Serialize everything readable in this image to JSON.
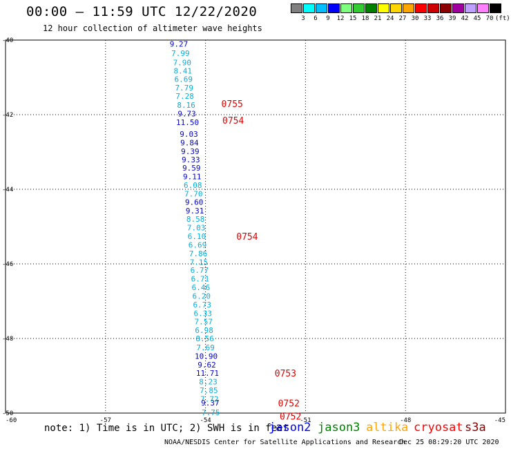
{
  "header": {
    "title": "00:00 – 11:59 UTC 12/22/2020",
    "subtitle": "12 hour collection of altimeter wave heights"
  },
  "colorbar": {
    "colors": [
      "#808080",
      "#00ffff",
      "#00bfff",
      "#0000ff",
      "#7fff7f",
      "#32cd32",
      "#008000",
      "#ffff00",
      "#ffd700",
      "#ffa500",
      "#ff0000",
      "#cc0000",
      "#8b0000",
      "#a000a0",
      "#c0a0ff",
      "#ff80ff",
      "#000000"
    ],
    "labels": [
      "3",
      "6",
      "9",
      "12",
      "15",
      "18",
      "21",
      "24",
      "27",
      "30",
      "33",
      "36",
      "39",
      "42",
      "45",
      "70",
      "(ft)"
    ]
  },
  "chart_data": {
    "type": "scatter",
    "xlim": [
      -60,
      -45
    ],
    "ylim": [
      -50,
      -40
    ],
    "xticks": [
      "-60",
      "-57",
      "-54",
      "-51",
      "-48",
      "-45"
    ],
    "yticks": [
      "-40",
      "-42",
      "-44",
      "-46",
      "-48",
      "-50"
    ],
    "grid": true,
    "points": [
      {
        "lon": -54.8,
        "lat": -40.1,
        "swh": "9.27",
        "color": "#0000cc"
      },
      {
        "lon": -54.75,
        "lat": -40.35,
        "swh": "7.99",
        "color": "#00b0e0"
      },
      {
        "lon": -54.7,
        "lat": -40.6,
        "swh": "7.90",
        "color": "#00b0e0"
      },
      {
        "lon": -54.68,
        "lat": -40.82,
        "swh": "8.41",
        "color": "#00b0e0"
      },
      {
        "lon": -54.66,
        "lat": -41.05,
        "swh": "6.69",
        "color": "#00b0e0"
      },
      {
        "lon": -54.64,
        "lat": -41.28,
        "swh": "7.79",
        "color": "#00b0e0"
      },
      {
        "lon": -54.62,
        "lat": -41.5,
        "swh": "7.28",
        "color": "#00b0e0"
      },
      {
        "lon": -54.58,
        "lat": -41.74,
        "swh": "8.16",
        "color": "#00b0e0"
      },
      {
        "lon": -54.56,
        "lat": -41.97,
        "swh": "9.73",
        "color": "#0000cc"
      },
      {
        "lon": -54.54,
        "lat": -42.2,
        "swh": "11.50",
        "color": "#0000cc"
      },
      {
        "lon": -54.5,
        "lat": -42.52,
        "swh": "9.03",
        "color": "#0000cc"
      },
      {
        "lon": -54.48,
        "lat": -42.75,
        "swh": "9.84",
        "color": "#0000cc"
      },
      {
        "lon": -54.46,
        "lat": -42.98,
        "swh": "9.39",
        "color": "#0000cc"
      },
      {
        "lon": -54.44,
        "lat": -43.2,
        "swh": "9.33",
        "color": "#0000cc"
      },
      {
        "lon": -54.42,
        "lat": -43.43,
        "swh": "9.59",
        "color": "#0000cc"
      },
      {
        "lon": -54.4,
        "lat": -43.66,
        "swh": "9.11",
        "color": "#0000cc"
      },
      {
        "lon": -54.38,
        "lat": -43.89,
        "swh": "6.08",
        "color": "#00b0e0"
      },
      {
        "lon": -54.36,
        "lat": -44.12,
        "swh": "7.70",
        "color": "#00b0e0"
      },
      {
        "lon": -54.34,
        "lat": -44.34,
        "swh": "9.60",
        "color": "#0000cc"
      },
      {
        "lon": -54.32,
        "lat": -44.57,
        "swh": "9.31",
        "color": "#0000cc"
      },
      {
        "lon": -54.3,
        "lat": -44.8,
        "swh": "8.58",
        "color": "#00b0e0"
      },
      {
        "lon": -54.28,
        "lat": -45.03,
        "swh": "7.03",
        "color": "#00b0e0"
      },
      {
        "lon": -54.26,
        "lat": -45.26,
        "swh": "6.10",
        "color": "#00b0e0"
      },
      {
        "lon": -54.24,
        "lat": -45.49,
        "swh": "6.69",
        "color": "#00b0e0"
      },
      {
        "lon": -54.22,
        "lat": -45.72,
        "swh": "7.86",
        "color": "#00b0e0"
      },
      {
        "lon": -54.2,
        "lat": -45.95,
        "swh": "7.15",
        "color": "#00b0e0"
      },
      {
        "lon": -54.18,
        "lat": -46.17,
        "swh": "6.77",
        "color": "#00b0e0"
      },
      {
        "lon": -54.16,
        "lat": -46.4,
        "swh": "6.71",
        "color": "#00b0e0"
      },
      {
        "lon": -54.14,
        "lat": -46.63,
        "swh": "6.46",
        "color": "#00b0e0"
      },
      {
        "lon": -54.12,
        "lat": -46.86,
        "swh": "6.20",
        "color": "#00b0e0"
      },
      {
        "lon": -54.1,
        "lat": -47.09,
        "swh": "6.73",
        "color": "#00b0e0"
      },
      {
        "lon": -54.08,
        "lat": -47.32,
        "swh": "6.33",
        "color": "#00b0e0"
      },
      {
        "lon": -54.06,
        "lat": -47.55,
        "swh": "7.57",
        "color": "#00b0e0"
      },
      {
        "lon": -54.04,
        "lat": -47.78,
        "swh": "6.98",
        "color": "#00b0e0"
      },
      {
        "lon": -54.02,
        "lat": -48.0,
        "swh": "8.56",
        "color": "#00b0e0"
      },
      {
        "lon": -54.0,
        "lat": -48.24,
        "swh": "7.69",
        "color": "#00b0e0"
      },
      {
        "lon": -53.98,
        "lat": -48.47,
        "swh": "10.90",
        "color": "#0000cc"
      },
      {
        "lon": -53.96,
        "lat": -48.7,
        "swh": "9.62",
        "color": "#0000cc"
      },
      {
        "lon": -53.94,
        "lat": -48.93,
        "swh": "11.71",
        "color": "#0000cc"
      },
      {
        "lon": -53.92,
        "lat": -49.16,
        "swh": "8.23",
        "color": "#00b0e0"
      },
      {
        "lon": -53.9,
        "lat": -49.39,
        "swh": "7.85",
        "color": "#00b0e0"
      },
      {
        "lon": -53.88,
        "lat": -49.62,
        "swh": "7.72",
        "color": "#00b0e0"
      },
      {
        "lon": -53.86,
        "lat": -49.72,
        "swh": "9.37",
        "color": "#0000cc"
      },
      {
        "lon": -53.84,
        "lat": -49.98,
        "swh": "7.75",
        "color": "#00b0e0"
      }
    ],
    "time_labels": [
      {
        "lon": -53.2,
        "lat": -41.7,
        "text": "0755"
      },
      {
        "lon": -53.17,
        "lat": -42.15,
        "text": "0754"
      },
      {
        "lon": -52.75,
        "lat": -45.26,
        "text": "0754"
      },
      {
        "lon": -51.6,
        "lat": -48.93,
        "text": "0753"
      },
      {
        "lon": -51.5,
        "lat": -49.73,
        "text": "0752"
      },
      {
        "lon": -51.45,
        "lat": -50.08,
        "text": "0752"
      }
    ]
  },
  "footer": {
    "note": "note: 1) Time is in UTC; 2) SWH is in feet",
    "legend": [
      {
        "label": "jason2",
        "color": "#0000ff"
      },
      {
        "label": "jason3",
        "color": "#008000"
      },
      {
        "label": "altika",
        "color": "#ffa500"
      },
      {
        "label": "cryosat",
        "color": "#ff0000"
      },
      {
        "label": "s3a",
        "color": "#8b0000"
      }
    ],
    "credit": "NOAA/NESDIS Center for Satellite Applications and Research",
    "stamp": "Dec 25 08:29:20 UTC 2020"
  }
}
